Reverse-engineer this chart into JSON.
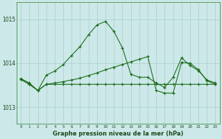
{
  "bg_color": "#cce8e8",
  "grid_color": "#aacccc",
  "line_color": "#1a6b1a",
  "xlabel": "Graphe pression niveau de la mer (hPa)",
  "ylim": [
    1012.62,
    1015.38
  ],
  "yticks": [
    1013,
    1014,
    1015
  ],
  "xlim": [
    -0.5,
    23.5
  ],
  "xticks": [
    0,
    1,
    2,
    3,
    4,
    5,
    6,
    7,
    8,
    9,
    10,
    11,
    12,
    13,
    14,
    15,
    16,
    17,
    18,
    19,
    20,
    21,
    22,
    23
  ],
  "line1_x": [
    0,
    1,
    2,
    3,
    4,
    5,
    6,
    7,
    8,
    9,
    10,
    11,
    12,
    13,
    14,
    15,
    16,
    17,
    18,
    19,
    20,
    21,
    22,
    23
  ],
  "line1_y": [
    1013.65,
    1013.55,
    1013.38,
    1013.73,
    1013.82,
    1013.97,
    1014.18,
    1014.38,
    1014.65,
    1014.87,
    1014.95,
    1014.72,
    1014.35,
    1013.75,
    1013.68,
    1013.68,
    1013.55,
    1013.45,
    1013.68,
    1014.12,
    1013.95,
    1013.83,
    1013.62,
    1013.55
  ],
  "line2_x": [
    0,
    1,
    2,
    3,
    4,
    5,
    6,
    7,
    8,
    9,
    10,
    11,
    12,
    13,
    14,
    15,
    16,
    17,
    18,
    19,
    20,
    21,
    22,
    23
  ],
  "line2_y": [
    1013.63,
    1013.52,
    1013.38,
    1013.52,
    1013.52,
    1013.52,
    1013.52,
    1013.52,
    1013.52,
    1013.52,
    1013.52,
    1013.52,
    1013.52,
    1013.52,
    1013.52,
    1013.52,
    1013.52,
    1013.52,
    1013.52,
    1013.52,
    1013.52,
    1013.52,
    1013.52,
    1013.52
  ],
  "line3_x": [
    0,
    1,
    2,
    3,
    4,
    5,
    6,
    7,
    8,
    9,
    10,
    11,
    12,
    13,
    14,
    15,
    16,
    17,
    18,
    19,
    20,
    21,
    22,
    23
  ],
  "line3_y": [
    1013.63,
    1013.52,
    1013.38,
    1013.52,
    1013.55,
    1013.58,
    1013.62,
    1013.66,
    1013.72,
    1013.78,
    1013.85,
    1013.91,
    1013.97,
    1014.03,
    1014.09,
    1014.15,
    1013.38,
    1013.32,
    1013.32,
    1014.02,
    1014.0,
    1013.85,
    1013.6,
    1013.52
  ]
}
